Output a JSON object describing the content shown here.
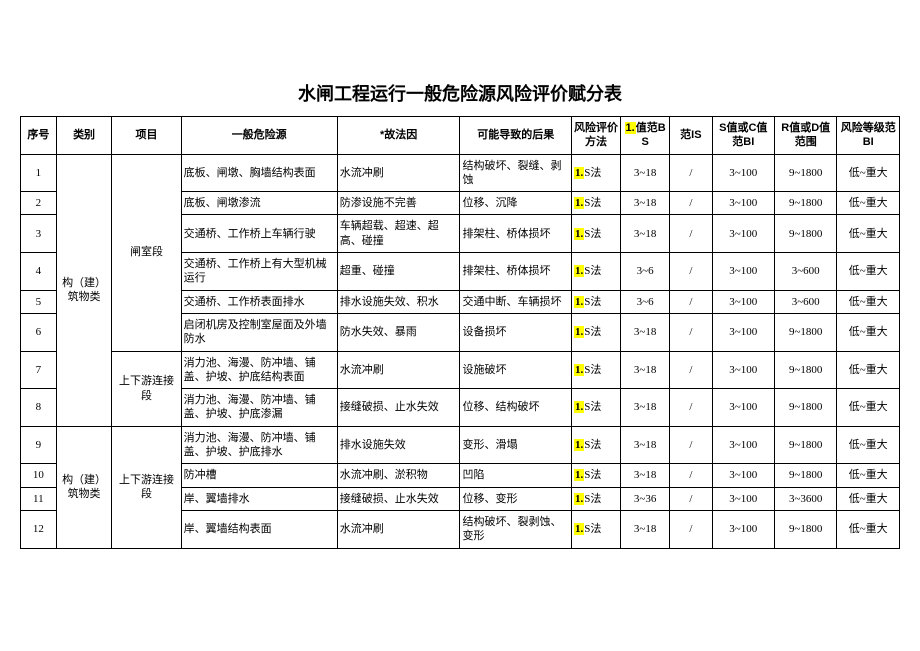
{
  "title": "水闸工程运行一般危险源风险评价赋分表",
  "columns": {
    "seq": "序号",
    "category": "类别",
    "project": "项目",
    "hazard": "一般危险源",
    "cause": "*故法因",
    "consequence": "可能导致的后果",
    "method": "风险评价方法",
    "bs": "值范BS",
    "bs_prefix": "1.",
    "is": "范IS",
    "sc": "S值或C值范BI",
    "rd": "R值或D值范围",
    "level": "风险等级范BI"
  },
  "category_groups": [
    {
      "label": "构（建）筑物类",
      "rowspan": 8
    },
    {
      "label": "构（建）筑物类",
      "rowspan": 4
    }
  ],
  "project_groups": [
    {
      "label": "闸室段",
      "rowspan": 6
    },
    {
      "label": "上下游连接段",
      "rowspan": 2
    },
    {
      "label": "上下游连接段",
      "rowspan": 4
    }
  ],
  "method_prefix": "1.",
  "method_suffix": "S法",
  "rows": [
    {
      "seq": "1",
      "hazard": "底板、闸墩、胸墙结构表面",
      "cause": "水流冲刷",
      "consequence": "结构破坏、裂缝、剥蚀",
      "bs": "3~18",
      "is": "/",
      "sc": "3~100",
      "rd": "9~1800",
      "level": "低~重大"
    },
    {
      "seq": "2",
      "hazard": "底板、闸墩渗流",
      "cause": "防渗设施不完善",
      "consequence": "位移、沉降",
      "bs": "3~18",
      "is": "/",
      "sc": "3~100",
      "rd": "9~1800",
      "level": "低~重大"
    },
    {
      "seq": "3",
      "hazard": "交通桥、工作桥上车辆行驶",
      "cause": "车辆超载、超速、超高、碰撞",
      "consequence": "排架柱、桥体损坏",
      "bs": "3~18",
      "is": "/",
      "sc": "3~100",
      "rd": "9~1800",
      "level": "低~重大"
    },
    {
      "seq": "4",
      "hazard": "交通桥、工作桥上有大型机械运行",
      "cause": "超重、碰撞",
      "consequence": "排架柱、桥体损坏",
      "bs": "3~6",
      "is": "/",
      "sc": "3~100",
      "rd": "3~600",
      "level": "低~重大"
    },
    {
      "seq": "5",
      "hazard": "交通桥、工作桥表面排水",
      "cause": "排水设施失效、积水",
      "consequence": "交通中断、车辆损坏",
      "bs": "3~6",
      "is": "/",
      "sc": "3~100",
      "rd": "3~600",
      "level": "低~重大"
    },
    {
      "seq": "6",
      "hazard": "启闭机房及控制室屋面及外墙防水",
      "cause": "防水失效、暴雨",
      "consequence": "设备损坏",
      "bs": "3~18",
      "is": "/",
      "sc": "3~100",
      "rd": "9~1800",
      "level": "低~重大"
    },
    {
      "seq": "7",
      "hazard": "消力池、海漫、防冲墙、铺盖、护坡、护底结构表面",
      "cause": "水流冲刷",
      "consequence": "设施破坏",
      "bs": "3~18",
      "is": "/",
      "sc": "3~100",
      "rd": "9~1800",
      "level": "低~重大"
    },
    {
      "seq": "8",
      "hazard": "消力池、海漫、防冲墙、铺盖、护坡、护底渗漏",
      "cause": "接缝破损、止水失效",
      "consequence": "位移、结构破坏",
      "bs": "3~18",
      "is": "/",
      "sc": "3~100",
      "rd": "9~1800",
      "level": "低~重大"
    },
    {
      "seq": "9",
      "hazard": "消力池、海漫、防冲墙、铺盖、护坡、护底排水",
      "cause": "排水设施失效",
      "consequence": "变形、滑塌",
      "bs": "3~18",
      "is": "/",
      "sc": "3~100",
      "rd": "9~1800",
      "level": "低~重大"
    },
    {
      "seq": "10",
      "hazard": "防冲槽",
      "cause": "水流冲刷、淤积物",
      "consequence": "凹陷",
      "bs": "3~18",
      "is": "/",
      "sc": "3~100",
      "rd": "9~1800",
      "level": "低~重大"
    },
    {
      "seq": "11",
      "hazard": "岸、翼墙排水",
      "cause": "接缝破损、止水失效",
      "consequence": "位移、变形",
      "bs": "3~36",
      "is": "/",
      "sc": "3~100",
      "rd": "3~3600",
      "level": "低~重大"
    },
    {
      "seq": "12",
      "hazard": "岸、翼墙结构表面",
      "cause": "水流冲刷",
      "consequence": "结构破坏、裂剥蚀、变形",
      "bs": "3~18",
      "is": "/",
      "sc": "3~100",
      "rd": "9~1800",
      "level": "低~重大"
    }
  ],
  "style": {
    "highlight_bg": "#ffff00",
    "border_color": "#000000",
    "page_bg": "#ffffff",
    "title_fontsize_pt": 18,
    "body_fontsize_pt": 11
  }
}
